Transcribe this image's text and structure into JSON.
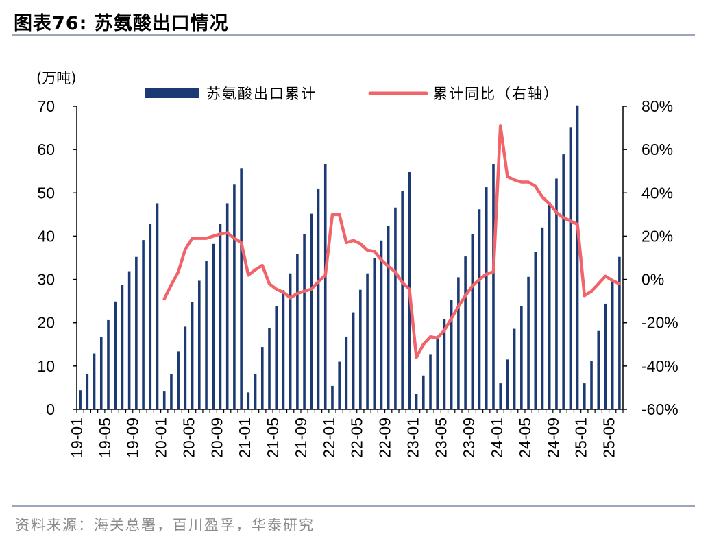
{
  "header": {
    "title": "图表76:   苏氨酸出口情况",
    "source": "资料来源：海关总署，百川盈孚，华泰研究"
  },
  "chart_data": {
    "type": "bar",
    "left_axis_unit": "(万吨)",
    "ylim_left": [
      0,
      70
    ],
    "yticks_left": [
      "0",
      "10",
      "20",
      "30",
      "40",
      "50",
      "60",
      "70"
    ],
    "ylim_right": [
      -60,
      80
    ],
    "yticks_right": [
      "-60%",
      "-40%",
      "-20%",
      "0%",
      "20%",
      "40%",
      "60%",
      "80%"
    ],
    "x_tick_labels": [
      "19-01",
      "19-05",
      "19-09",
      "20-01",
      "20-05",
      "20-09",
      "21-01",
      "21-05",
      "21-09",
      "22-01",
      "22-05",
      "22-09",
      "23-01",
      "23-05",
      "23-09",
      "24-01",
      "24-05",
      "24-09",
      "25-01",
      "25-05"
    ],
    "legend": {
      "bar": "苏氨酸出口累计",
      "line": "累计同比（右轴）",
      "position": "top"
    },
    "colors": {
      "bar": "#1b3a73",
      "line": "#f0646a"
    },
    "categories": [
      "19-01",
      "19-02",
      "19-03",
      "19-04",
      "19-05",
      "19-06",
      "19-07",
      "19-08",
      "19-09",
      "19-10",
      "19-11",
      "19-12",
      "20-01",
      "20-02",
      "20-03",
      "20-04",
      "20-05",
      "20-06",
      "20-07",
      "20-08",
      "20-09",
      "20-10",
      "20-11",
      "20-12",
      "21-01",
      "21-02",
      "21-03",
      "21-04",
      "21-05",
      "21-06",
      "21-07",
      "21-08",
      "21-09",
      "21-10",
      "21-11",
      "21-12",
      "22-01",
      "22-02",
      "22-03",
      "22-04",
      "22-05",
      "22-06",
      "22-07",
      "22-08",
      "22-09",
      "22-10",
      "22-11",
      "22-12",
      "23-01",
      "23-02",
      "23-03",
      "23-04",
      "23-05",
      "23-06",
      "23-07",
      "23-08",
      "23-09",
      "23-10",
      "23-11",
      "23-12",
      "24-01",
      "24-02",
      "24-03",
      "24-04",
      "24-05",
      "24-06",
      "24-07",
      "24-08",
      "24-09",
      "24-10",
      "24-11",
      "24-12",
      "25-01",
      "25-02",
      "25-03",
      "25-04",
      "25-05",
      "25-06"
    ],
    "series": [
      {
        "name": "苏氨酸出口累计",
        "type": "bar",
        "axis": "left",
        "values": [
          4.4,
          8.2,
          12.9,
          16.7,
          20.6,
          24.9,
          28.7,
          31.9,
          35.2,
          39.1,
          42.8,
          47.6,
          4.1,
          8.2,
          13.4,
          19.1,
          24.8,
          29.7,
          34.3,
          38.2,
          42.8,
          47.6,
          51.9,
          55.7,
          3.9,
          8.2,
          14.4,
          18.7,
          23.9,
          27.5,
          31.4,
          35.8,
          40.5,
          45.2,
          51.0,
          56.7,
          5.4,
          11.0,
          16.8,
          22.4,
          27.6,
          31.4,
          34.9,
          39.0,
          42.3,
          46.6,
          50.5,
          54.8,
          3.5,
          7.8,
          12.6,
          16.7,
          20.9,
          25.3,
          30.5,
          35.3,
          40.5,
          46.2,
          51.3,
          56.7,
          6.0,
          11.5,
          18.6,
          23.8,
          30.6,
          36.3,
          42.0,
          47.9,
          53.3,
          58.9,
          65.2,
          70.2,
          6.0,
          11.1,
          18.1,
          24.4,
          29.9,
          35.2
        ]
      },
      {
        "name": "累计同比（右轴）",
        "type": "line",
        "axis": "right",
        "values": [
          null,
          null,
          null,
          null,
          null,
          null,
          null,
          null,
          null,
          null,
          null,
          null,
          -9.0,
          -2.5,
          3.5,
          14.0,
          19.0,
          19.0,
          19.0,
          20.0,
          21.0,
          21.5,
          19.0,
          17.0,
          2.0,
          4.5,
          6.5,
          -2.0,
          -4.5,
          -6.0,
          -8.5,
          -6.5,
          -5.5,
          -4.5,
          -1.0,
          2.0,
          30.0,
          30.0,
          17.0,
          18.0,
          16.5,
          13.5,
          13.0,
          9.0,
          6.0,
          3.5,
          -1.5,
          -4.5,
          -36.0,
          -30.0,
          -26.5,
          -27.0,
          -23.5,
          -18.0,
          -12.5,
          -7.5,
          -3.0,
          0.0,
          2.5,
          3.5,
          71.0,
          47.5,
          46.0,
          45.0,
          45.0,
          43.0,
          38.0,
          35.0,
          31.0,
          28.5,
          27.0,
          25.5,
          -7.5,
          -5.5,
          -2.0,
          1.5,
          -0.5,
          -2.0
        ]
      }
    ]
  }
}
